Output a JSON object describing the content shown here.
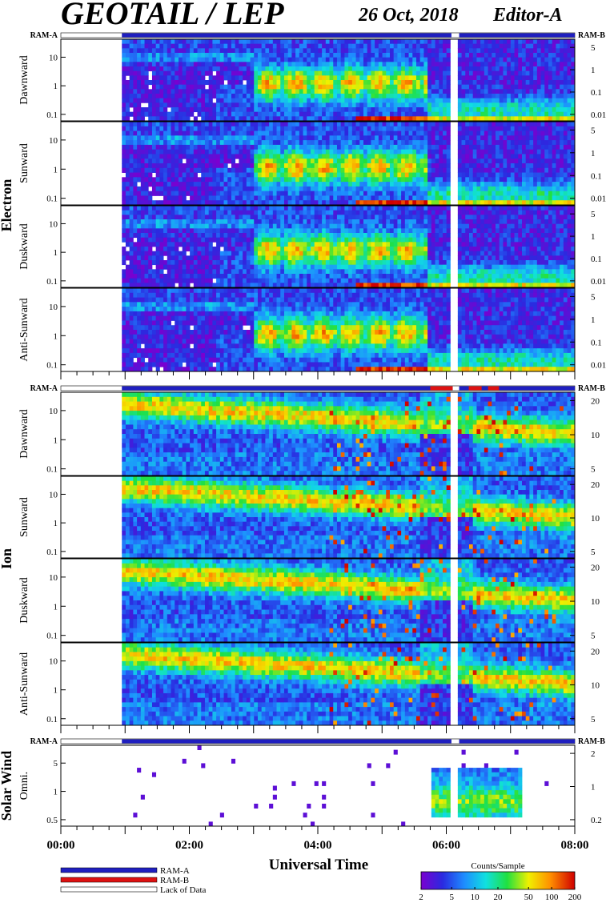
{
  "header": {
    "title": "GEOTAIL / LEP",
    "date": "26 Oct, 2018",
    "editor": "Editor-A"
  },
  "colors": {
    "ram_a": "#1f1fbf",
    "ram_b": "#dd1111",
    "lack": "#ffffff",
    "spectrum_low": "#7a00d0",
    "spectrum_high": "#d00000"
  },
  "chart_data": {
    "type": "heatmap",
    "xlabel": "Universal Time",
    "x_ticks": [
      "00:00",
      "02:00",
      "04:00",
      "06:00",
      "08:00"
    ],
    "xlim_hours": [
      0,
      8
    ],
    "data_start_hour": 0.95,
    "gap_hours": [
      [
        6.08,
        6.2
      ]
    ],
    "colorbar": {
      "label": "Counts/Sample",
      "ticks": [
        "2",
        "5",
        "10",
        "20",
        "50",
        "100",
        "200"
      ],
      "range": [
        2,
        200
      ],
      "scale": "log"
    },
    "ram_labels": {
      "left": "RAM-A",
      "right": "RAM-B"
    },
    "groups": [
      {
        "species": "Electron",
        "ram_b_hours": [],
        "panels": [
          {
            "label": "Dawnward",
            "yticks_left": [
              "10",
              "1",
              "0.1"
            ],
            "yticks_right": [
              "5",
              "1",
              "0.1",
              "0.01"
            ]
          },
          {
            "label": "Sunward",
            "yticks_left": [
              "10",
              "1",
              "0.1"
            ],
            "yticks_right": [
              "5",
              "1",
              "0.1",
              "0.01"
            ]
          },
          {
            "label": "Duskward",
            "yticks_left": [
              "10",
              "1",
              "0.1"
            ],
            "yticks_right": [
              "5",
              "1",
              "0.1",
              "0.01"
            ]
          },
          {
            "label": "Anti-Sunward",
            "yticks_left": [
              "10",
              "1",
              "0.1"
            ],
            "yticks_right": [
              "5",
              "1",
              "0.1",
              "0.01"
            ]
          }
        ]
      },
      {
        "species": "Ion",
        "ram_b_hours": [
          [
            5.75,
            6.1
          ],
          [
            6.35,
            6.55
          ],
          [
            6.65,
            6.82
          ]
        ],
        "panels": [
          {
            "label": "Dawnward",
            "yticks_left": [
              "10",
              "1",
              "0.1"
            ],
            "yticks_right": [
              "20",
              "10",
              "5"
            ]
          },
          {
            "label": "Sunward",
            "yticks_left": [
              "10",
              "1",
              "0.1"
            ],
            "yticks_right": [
              "20",
              "10",
              "5"
            ]
          },
          {
            "label": "Duskward",
            "yticks_left": [
              "10",
              "1",
              "0.1"
            ],
            "yticks_right": [
              "20",
              "10",
              "5"
            ]
          },
          {
            "label": "Anti-Sunward",
            "yticks_left": [
              "10",
              "1",
              "0.1"
            ],
            "yticks_right": [
              "20",
              "10",
              "5"
            ]
          }
        ]
      },
      {
        "species": "Solar Wind",
        "ram_b_hours": [],
        "panels": [
          {
            "label": "Omni.",
            "yticks_left": [
              "5",
              "1",
              "0.5"
            ],
            "yticks_right": [
              "2",
              "1",
              "0.2"
            ]
          }
        ]
      }
    ],
    "legend": [
      {
        "label": "RAM-A",
        "color": "#1f1fbf"
      },
      {
        "label": "RAM-B",
        "color": "#dd1111"
      },
      {
        "label": "Lack of Data",
        "color": "#ffffff"
      }
    ]
  }
}
